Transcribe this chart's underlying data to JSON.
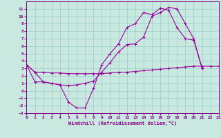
{
  "line1_x": [
    0,
    1,
    2,
    3,
    4,
    5,
    6,
    7,
    8,
    9,
    10,
    11,
    12,
    13,
    14,
    15,
    16,
    17,
    18,
    19,
    20,
    21,
    22,
    23
  ],
  "line1_y": [
    3.5,
    2.5,
    1.2,
    1.0,
    0.8,
    -1.5,
    -2.3,
    -2.3,
    0.3,
    3.5,
    5.0,
    6.3,
    8.5,
    9.0,
    10.5,
    10.2,
    11.1,
    10.8,
    8.5,
    7.0,
    6.8,
    3.0,
    null,
    null
  ],
  "line2_x": [
    0,
    1,
    2,
    3,
    4,
    5,
    6,
    7,
    8,
    9,
    10,
    11,
    12,
    13,
    14,
    15,
    16,
    17,
    18,
    19,
    20,
    21,
    22,
    23
  ],
  "line2_y": [
    3.5,
    2.5,
    2.5,
    2.4,
    2.4,
    2.3,
    2.3,
    2.3,
    2.3,
    2.3,
    2.4,
    2.5,
    2.5,
    2.6,
    2.7,
    2.8,
    2.9,
    3.0,
    3.1,
    3.2,
    3.3,
    3.3,
    3.3,
    3.3
  ],
  "line3_x": [
    0,
    1,
    2,
    3,
    4,
    5,
    6,
    7,
    8,
    9,
    10,
    11,
    12,
    13,
    14,
    15,
    16,
    17,
    18,
    19,
    20,
    21,
    22,
    23
  ],
  "line3_y": [
    3.5,
    1.2,
    1.2,
    1.0,
    0.8,
    0.7,
    0.8,
    1.0,
    1.3,
    2.5,
    3.8,
    5.2,
    6.2,
    6.3,
    7.2,
    10.0,
    10.5,
    11.2,
    11.0,
    9.0,
    7.0,
    3.0,
    null,
    null
  ],
  "bg_color": "#c8e8e0",
  "grid_color": "#99cccc",
  "line_color": "#990099",
  "xlabel": "Windchill (Refroidissement éolien,°C)",
  "xlim": [
    0,
    23
  ],
  "ylim": [
    -3,
    12
  ],
  "xticks": [
    0,
    1,
    2,
    3,
    4,
    5,
    6,
    7,
    8,
    9,
    10,
    11,
    12,
    13,
    14,
    15,
    16,
    17,
    18,
    19,
    20,
    21,
    22,
    23
  ],
  "yticks": [
    -3,
    -2,
    -1,
    0,
    1,
    2,
    3,
    4,
    5,
    6,
    7,
    8,
    9,
    10,
    11
  ]
}
